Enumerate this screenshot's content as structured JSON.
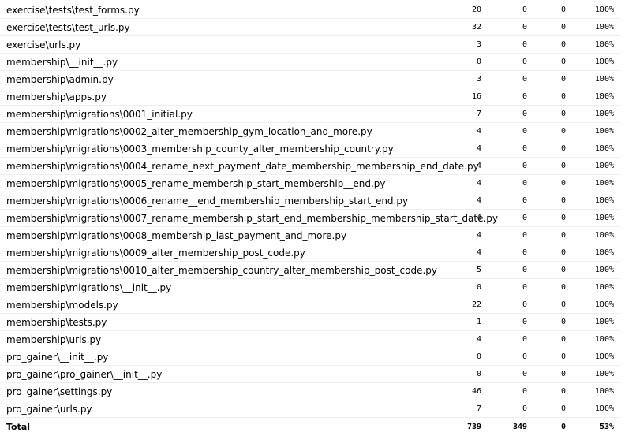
{
  "rows": [
    {
      "file": "exercise\\tests\\test_forms.py",
      "statements": "20",
      "missing": "0",
      "excluded": "0",
      "coverage": "100%"
    },
    {
      "file": "exercise\\tests\\test_urls.py",
      "statements": "32",
      "missing": "0",
      "excluded": "0",
      "coverage": "100%"
    },
    {
      "file": "exercise\\urls.py",
      "statements": "3",
      "missing": "0",
      "excluded": "0",
      "coverage": "100%"
    },
    {
      "file": "membership\\__init__.py",
      "statements": "0",
      "missing": "0",
      "excluded": "0",
      "coverage": "100%"
    },
    {
      "file": "membership\\admin.py",
      "statements": "3",
      "missing": "0",
      "excluded": "0",
      "coverage": "100%"
    },
    {
      "file": "membership\\apps.py",
      "statements": "16",
      "missing": "0",
      "excluded": "0",
      "coverage": "100%"
    },
    {
      "file": "membership\\migrations\\0001_initial.py",
      "statements": "7",
      "missing": "0",
      "excluded": "0",
      "coverage": "100%"
    },
    {
      "file": "membership\\migrations\\0002_alter_membership_gym_location_and_more.py",
      "statements": "4",
      "missing": "0",
      "excluded": "0",
      "coverage": "100%"
    },
    {
      "file": "membership\\migrations\\0003_membership_county_alter_membership_country.py",
      "statements": "4",
      "missing": "0",
      "excluded": "0",
      "coverage": "100%"
    },
    {
      "file": "membership\\migrations\\0004_rename_next_payment_date_membership_membership_end_date.py",
      "statements": "4",
      "missing": "0",
      "excluded": "0",
      "coverage": "100%"
    },
    {
      "file": "membership\\migrations\\0005_rename_membership_start_membership__end.py",
      "statements": "4",
      "missing": "0",
      "excluded": "0",
      "coverage": "100%"
    },
    {
      "file": "membership\\migrations\\0006_rename__end_membership_membership_start_end.py",
      "statements": "4",
      "missing": "0",
      "excluded": "0",
      "coverage": "100%"
    },
    {
      "file": "membership\\migrations\\0007_rename_membership_start_end_membership_membership_start_date.py",
      "statements": "4",
      "missing": "0",
      "excluded": "0",
      "coverage": "100%"
    },
    {
      "file": "membership\\migrations\\0008_membership_last_payment_and_more.py",
      "statements": "4",
      "missing": "0",
      "excluded": "0",
      "coverage": "100%"
    },
    {
      "file": "membership\\migrations\\0009_alter_membership_post_code.py",
      "statements": "4",
      "missing": "0",
      "excluded": "0",
      "coverage": "100%"
    },
    {
      "file": "membership\\migrations\\0010_alter_membership_country_alter_membership_post_code.py",
      "statements": "5",
      "missing": "0",
      "excluded": "0",
      "coverage": "100%"
    },
    {
      "file": "membership\\migrations\\__init__.py",
      "statements": "0",
      "missing": "0",
      "excluded": "0",
      "coverage": "100%"
    },
    {
      "file": "membership\\models.py",
      "statements": "22",
      "missing": "0",
      "excluded": "0",
      "coverage": "100%"
    },
    {
      "file": "membership\\tests.py",
      "statements": "1",
      "missing": "0",
      "excluded": "0",
      "coverage": "100%"
    },
    {
      "file": "membership\\urls.py",
      "statements": "4",
      "missing": "0",
      "excluded": "0",
      "coverage": "100%"
    },
    {
      "file": "pro_gainer\\__init__.py",
      "statements": "0",
      "missing": "0",
      "excluded": "0",
      "coverage": "100%"
    },
    {
      "file": "pro_gainer\\pro_gainer\\__init__.py",
      "statements": "0",
      "missing": "0",
      "excluded": "0",
      "coverage": "100%"
    },
    {
      "file": "pro_gainer\\settings.py",
      "statements": "46",
      "missing": "0",
      "excluded": "0",
      "coverage": "100%"
    },
    {
      "file": "pro_gainer\\urls.py",
      "statements": "7",
      "missing": "0",
      "excluded": "0",
      "coverage": "100%"
    }
  ],
  "total": {
    "label": "Total",
    "statements": "739",
    "missing": "349",
    "excluded": "0",
    "coverage": "53%"
  }
}
